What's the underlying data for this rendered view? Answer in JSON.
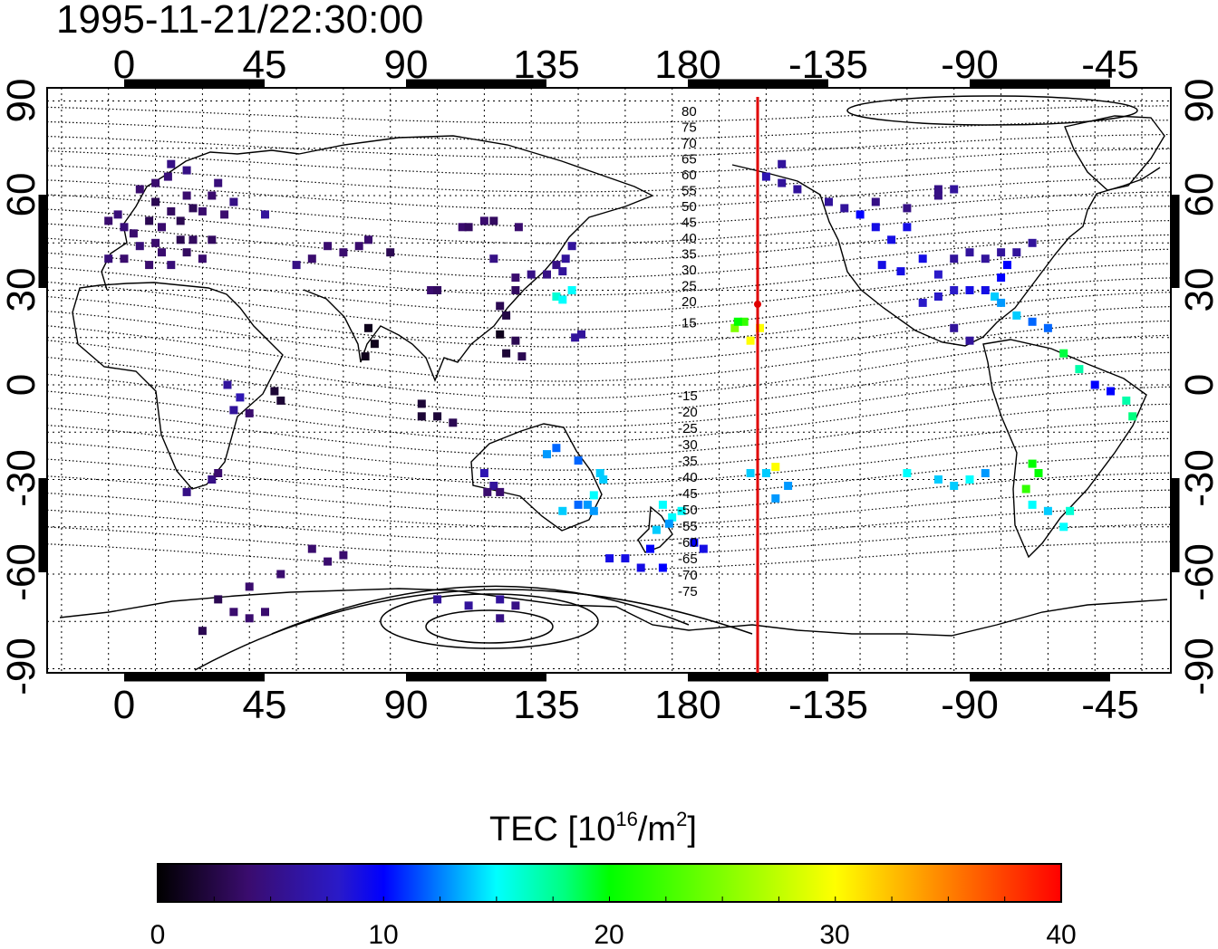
{
  "title": "1995-11-21/22:30:00",
  "map": {
    "x_tick_labels": [
      "0",
      "45",
      "90",
      "135",
      "180",
      "-135",
      "-90",
      "-45"
    ],
    "y_tick_labels": [
      "90",
      "60",
      "30",
      "0",
      "-30",
      "-60",
      "-90"
    ],
    "grid": "dotted",
    "meridian_marker": {
      "lon": -160,
      "color": "#e00000"
    },
    "geomagnetic_contour_labels_north": [
      "80",
      "75",
      "70",
      "65",
      "60",
      "55",
      "50",
      "45",
      "40",
      "35",
      "30",
      "25",
      "20",
      "15"
    ],
    "geomagnetic_contour_labels_south": [
      "-15",
      "-20",
      "-25",
      "-30",
      "-35",
      "-40",
      "-45",
      "-50",
      "-55",
      "-60",
      "-65",
      "-70",
      "-75"
    ]
  },
  "colorbar": {
    "label_main": "TEC  [10",
    "label_sup1": "16",
    "label_mid": "/m",
    "label_sup2": "2",
    "label_end": "]",
    "tick_labels": [
      "0",
      "10",
      "20",
      "30",
      "40"
    ],
    "range": [
      0,
      40
    ]
  },
  "colors": {
    "colormap": [
      "#000000",
      "#3a0c6e",
      "#2a1ac8",
      "#0000ff",
      "#0080ff",
      "#00ffff",
      "#00ff80",
      "#00ff00",
      "#80ff00",
      "#ffff00",
      "#ff8000",
      "#ff0000"
    ],
    "marker": "#e00000",
    "coast": "#000000"
  },
  "chart_data": {
    "type": "scatter",
    "x_axis": "longitude",
    "y_axis": "latitude",
    "color_by": "TEC",
    "colorbar_range": [
      0,
      40
    ],
    "points": [
      [
        5,
        62,
        4
      ],
      [
        10,
        58,
        3
      ],
      [
        15,
        55,
        3.5
      ],
      [
        20,
        60,
        4
      ],
      [
        12,
        50,
        4
      ],
      [
        8,
        52,
        3
      ],
      [
        3,
        48,
        4
      ],
      [
        18,
        52,
        3
      ],
      [
        22,
        56,
        3.2
      ],
      [
        28,
        60,
        4
      ],
      [
        25,
        55,
        4
      ],
      [
        0,
        50,
        4.5
      ],
      [
        -2,
        54,
        4.5
      ],
      [
        -5,
        52,
        4
      ],
      [
        14,
        66,
        4.5
      ],
      [
        20,
        68,
        5
      ],
      [
        10,
        64,
        4
      ],
      [
        15,
        70,
        5
      ],
      [
        30,
        64,
        4.5
      ],
      [
        35,
        58,
        5
      ],
      [
        32,
        54,
        4
      ],
      [
        10,
        45,
        4
      ],
      [
        5,
        44,
        4.5
      ],
      [
        12,
        42,
        4
      ],
      [
        20,
        42,
        3.5
      ],
      [
        0,
        40,
        4
      ],
      [
        -5,
        40,
        4.5
      ],
      [
        8,
        38,
        4
      ],
      [
        15,
        38,
        4.5
      ],
      [
        25,
        40,
        4
      ],
      [
        18,
        46,
        3
      ],
      [
        22,
        46,
        3.5
      ],
      [
        28,
        46,
        3.5
      ],
      [
        45,
        54,
        6
      ],
      [
        55,
        38,
        5
      ],
      [
        65,
        44,
        4
      ],
      [
        70,
        42,
        4
      ],
      [
        75,
        44,
        4
      ],
      [
        78,
        46,
        4
      ],
      [
        85,
        42,
        3
      ],
      [
        60,
        40,
        4
      ],
      [
        98,
        30,
        4
      ],
      [
        100,
        30,
        3.5
      ],
      [
        108,
        50,
        4
      ],
      [
        110,
        50,
        3.5
      ],
      [
        115,
        52,
        4
      ],
      [
        118,
        52,
        3.5
      ],
      [
        126,
        50,
        4
      ],
      [
        118,
        40,
        5
      ],
      [
        125,
        34,
        4
      ],
      [
        125,
        30,
        3.5
      ],
      [
        130,
        35,
        5
      ],
      [
        135,
        35,
        5
      ],
      [
        138,
        38,
        5
      ],
      [
        140,
        36,
        6
      ],
      [
        141,
        40,
        6
      ],
      [
        143,
        44,
        6
      ],
      [
        120,
        25,
        3
      ],
      [
        122,
        22,
        2.5
      ],
      [
        125,
        14,
        3
      ],
      [
        122,
        10,
        2
      ],
      [
        120,
        16,
        1
      ],
      [
        127,
        9,
        3
      ],
      [
        78,
        18,
        1
      ],
      [
        80,
        13,
        1
      ],
      [
        77,
        9,
        1
      ],
      [
        138,
        28,
        16
      ],
      [
        140,
        27,
        15
      ],
      [
        143,
        30,
        15
      ],
      [
        144,
        15,
        6
      ],
      [
        146,
        16,
        6
      ],
      [
        33,
        0,
        6
      ],
      [
        37,
        -4,
        7
      ],
      [
        40,
        -9,
        4
      ],
      [
        35,
        -8,
        6
      ],
      [
        48,
        -2,
        2
      ],
      [
        50,
        -5,
        2
      ],
      [
        28,
        -30,
        5
      ],
      [
        30,
        -28,
        4
      ],
      [
        20,
        -34,
        5
      ],
      [
        95,
        -6,
        2
      ],
      [
        95,
        -10,
        2
      ],
      [
        100,
        -10,
        2
      ],
      [
        105,
        -12,
        3
      ],
      [
        115,
        -28,
        7
      ],
      [
        118,
        -32,
        6
      ],
      [
        120,
        -34,
        4
      ],
      [
        116,
        -34,
        4
      ],
      [
        135,
        -22,
        13
      ],
      [
        138,
        -20,
        12
      ],
      [
        145,
        -24,
        12
      ],
      [
        152,
        -28,
        14
      ],
      [
        153,
        -30,
        14
      ],
      [
        150,
        -35,
        15
      ],
      [
        148,
        -38,
        13
      ],
      [
        145,
        -38,
        12
      ],
      [
        140,
        -40,
        14
      ],
      [
        150,
        -40,
        13
      ],
      [
        155,
        -55,
        9
      ],
      [
        160,
        -55,
        9
      ],
      [
        165,
        -58,
        9
      ],
      [
        172,
        -38,
        15
      ],
      [
        175,
        -42,
        15
      ],
      [
        170,
        -46,
        14
      ],
      [
        174,
        -44,
        13
      ],
      [
        178,
        -40,
        15
      ],
      [
        182,
        -50,
        10
      ],
      [
        185,
        -52,
        9
      ],
      [
        172,
        -58,
        10
      ],
      [
        168,
        -52,
        10
      ],
      [
        60,
        -52,
        4
      ],
      [
        65,
        -56,
        4
      ],
      [
        70,
        -54,
        4
      ],
      [
        50,
        -60,
        4
      ],
      [
        40,
        -64,
        4
      ],
      [
        30,
        -68,
        3
      ],
      [
        35,
        -72,
        4
      ],
      [
        40,
        -74,
        4
      ],
      [
        25,
        -78,
        3
      ],
      [
        45,
        -72,
        4
      ],
      [
        100,
        -68,
        6
      ],
      [
        110,
        -70,
        6
      ],
      [
        120,
        -68,
        6
      ],
      [
        125,
        -70,
        5
      ],
      [
        120,
        -74,
        5
      ],
      [
        195,
        18,
        25
      ],
      [
        198,
        20,
        22
      ],
      [
        200,
        14,
        30
      ],
      [
        203,
        18,
        30
      ],
      [
        196,
        20,
        20
      ],
      [
        200,
        -28,
        14
      ],
      [
        205,
        -28,
        14
      ],
      [
        208,
        -36,
        13
      ],
      [
        212,
        -32,
        13
      ],
      [
        208,
        -26,
        30
      ],
      [
        -125,
        54,
        10
      ],
      [
        -120,
        50,
        9
      ],
      [
        -115,
        46,
        9
      ],
      [
        -110,
        50,
        9
      ],
      [
        -118,
        38,
        9
      ],
      [
        -112,
        36,
        9
      ],
      [
        -105,
        40,
        9
      ],
      [
        -100,
        35,
        8
      ],
      [
        -95,
        40,
        6
      ],
      [
        -90,
        42,
        6
      ],
      [
        -85,
        40,
        6
      ],
      [
        -80,
        42,
        6
      ],
      [
        -75,
        42,
        6
      ],
      [
        -70,
        45,
        6
      ],
      [
        -78,
        38,
        10
      ],
      [
        -80,
        34,
        10
      ],
      [
        -82,
        28,
        14
      ],
      [
        -85,
        30,
        9
      ],
      [
        -90,
        30,
        9
      ],
      [
        -95,
        30,
        8
      ],
      [
        -80,
        26,
        13
      ],
      [
        -75,
        22,
        14
      ],
      [
        -70,
        20,
        12
      ],
      [
        -65,
        18,
        12
      ],
      [
        -100,
        28,
        8
      ],
      [
        -105,
        26,
        8
      ],
      [
        -95,
        18,
        6
      ],
      [
        -90,
        14,
        6
      ],
      [
        -155,
        66,
        7
      ],
      [
        -150,
        64,
        6
      ],
      [
        -145,
        62,
        6
      ],
      [
        -135,
        58,
        6
      ],
      [
        -130,
        56,
        6
      ],
      [
        -120,
        58,
        5
      ],
      [
        -110,
        56,
        5
      ],
      [
        -100,
        60,
        5
      ],
      [
        -150,
        70,
        6
      ],
      [
        -100,
        62,
        5
      ],
      [
        -95,
        62,
        6
      ],
      [
        -60,
        10,
        19
      ],
      [
        -55,
        5,
        17
      ],
      [
        -50,
        0,
        10
      ],
      [
        -45,
        -2,
        10
      ],
      [
        -40,
        -5,
        17
      ],
      [
        -38,
        -10,
        18
      ],
      [
        -70,
        -25,
        20
      ],
      [
        -68,
        -28,
        20
      ],
      [
        -72,
        -33,
        22
      ],
      [
        -70,
        -38,
        15
      ],
      [
        -65,
        -40,
        14
      ],
      [
        -60,
        -45,
        15
      ],
      [
        -58,
        -40,
        16
      ],
      [
        -110,
        -28,
        15
      ],
      [
        -100,
        -30,
        14
      ],
      [
        -95,
        -32,
        14
      ],
      [
        -90,
        -30,
        15
      ],
      [
        -85,
        -28,
        13
      ]
    ]
  }
}
